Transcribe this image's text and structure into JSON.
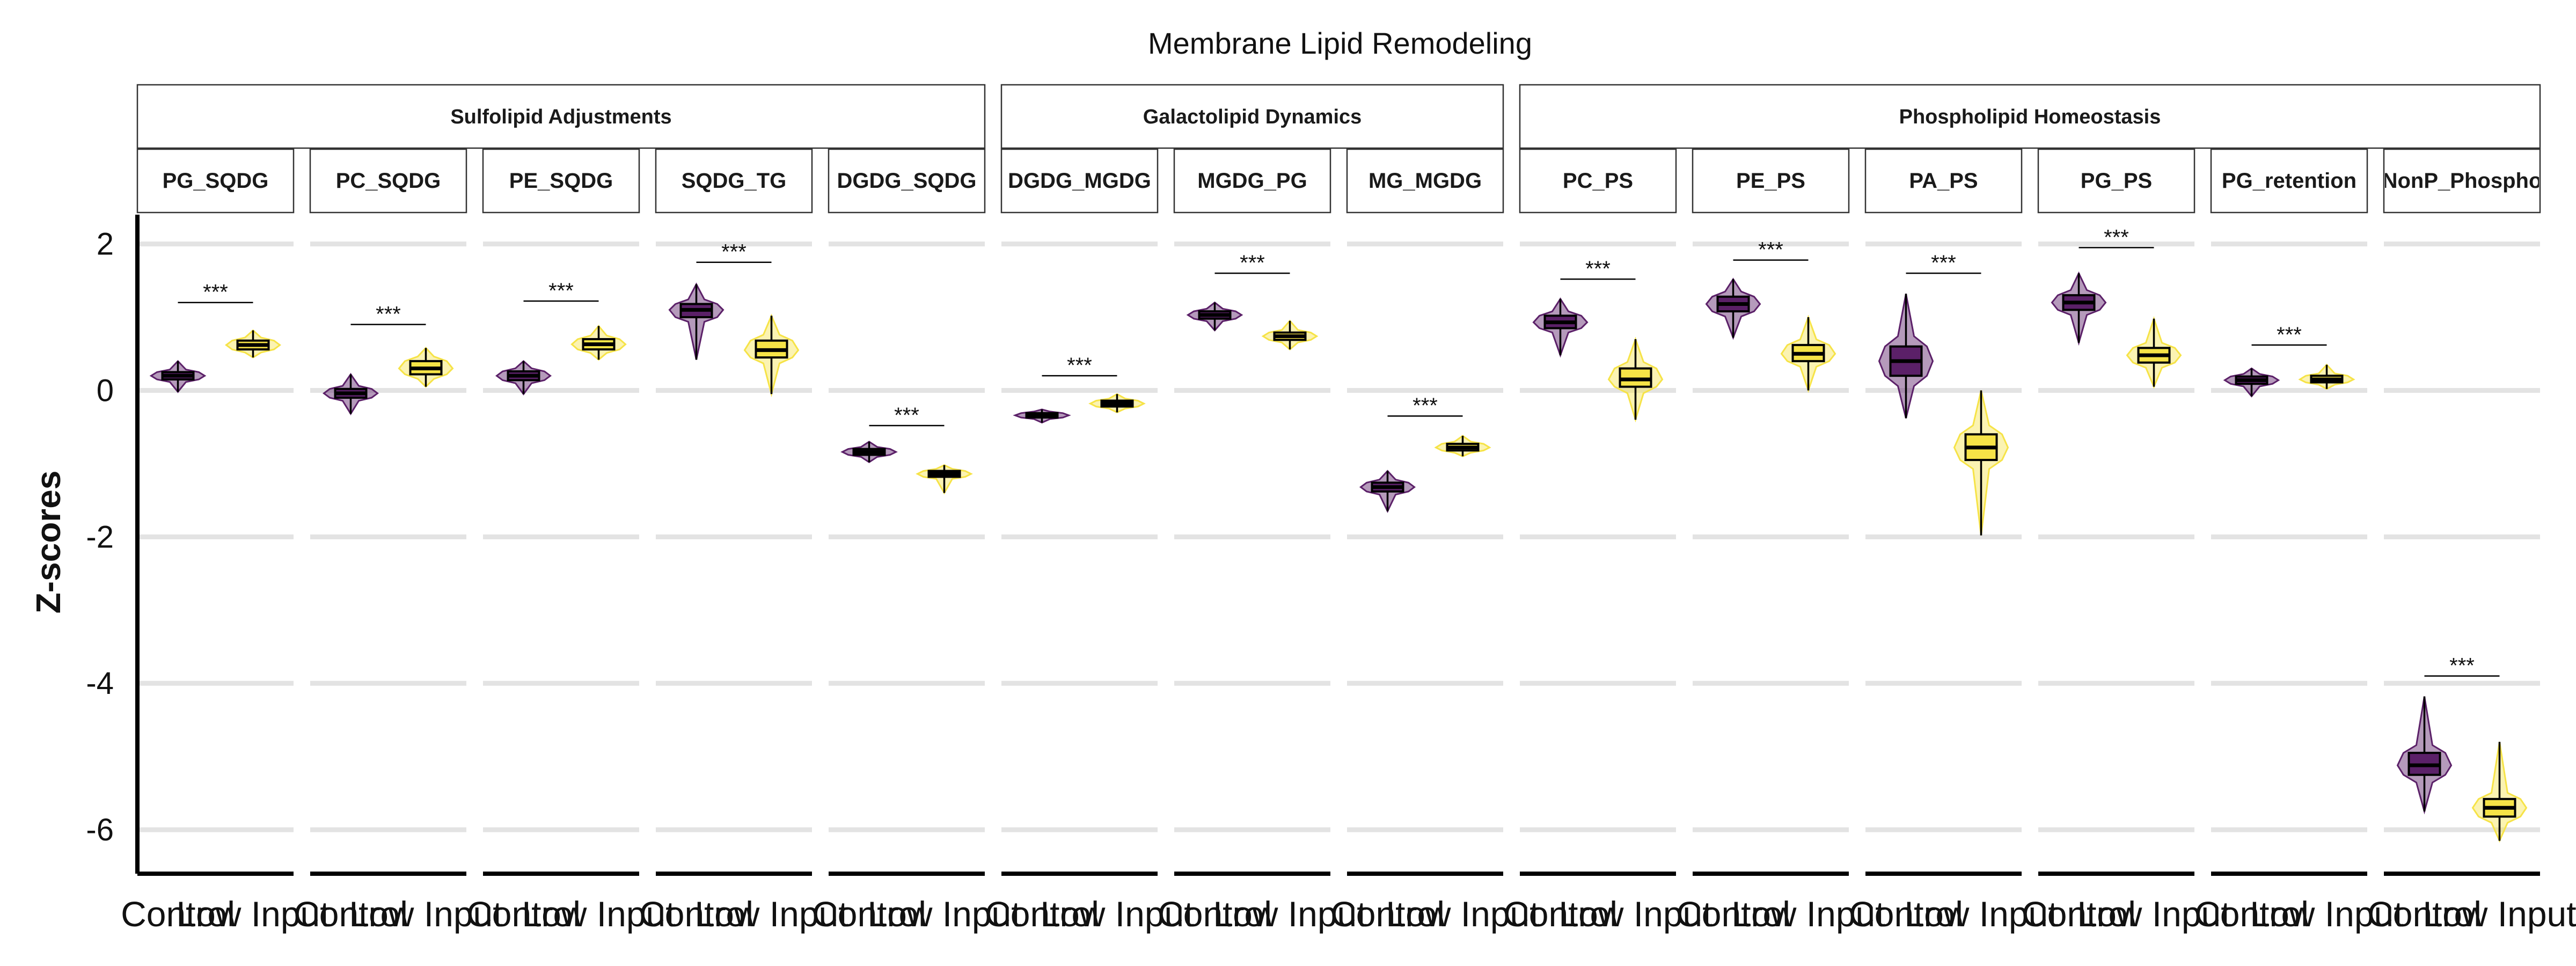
{
  "chart_data": {
    "type": "violin",
    "title": "Membrane Lipid Remodeling",
    "ylabel": "Z-scores",
    "xlabel": "",
    "ylim": [
      -6.6,
      2.4
    ],
    "yticks": [
      -6,
      -4,
      -2,
      0,
      2
    ],
    "grid": "horizontal",
    "legend": "none",
    "groups": [
      "Control",
      "Low Input"
    ],
    "colors": {
      "Control": "#5b2068",
      "Low Input": "#f6e347"
    },
    "significance_label": "***",
    "categories": [
      {
        "name": "Sulfolipid Adjustments",
        "panels": [
          "PG_SQDG",
          "PC_SQDG",
          "PE_SQDG",
          "SQDG_TG",
          "DGDG_SQDG"
        ]
      },
      {
        "name": "Galactolipid Dynamics",
        "panels": [
          "DGDG_MGDG",
          "MGDG_PG",
          "MG_MGDG"
        ]
      },
      {
        "name": "Phospholipid Homeostasis",
        "panels": [
          "PC_PS",
          "PE_PS",
          "PA_PS",
          "PG_PS",
          "PG_retention",
          "NonP_Phospho"
        ]
      }
    ],
    "panels": [
      {
        "name": "PG_SQDG",
        "sig_y": 1.2,
        "groups": [
          {
            "group": "Control",
            "min": -0.02,
            "q1": 0.15,
            "median": 0.2,
            "q3": 0.25,
            "max": 0.4
          },
          {
            "group": "Low Input",
            "min": 0.45,
            "q1": 0.56,
            "median": 0.62,
            "q3": 0.68,
            "max": 0.82
          }
        ]
      },
      {
        "name": "PC_SQDG",
        "sig_y": 0.9,
        "groups": [
          {
            "group": "Control",
            "min": -0.32,
            "q1": -0.1,
            "median": -0.04,
            "q3": 0.02,
            "max": 0.22
          },
          {
            "group": "Low Input",
            "min": 0.05,
            "q1": 0.22,
            "median": 0.3,
            "q3": 0.4,
            "max": 0.58
          }
        ]
      },
      {
        "name": "PE_SQDG",
        "sig_y": 1.22,
        "groups": [
          {
            "group": "Control",
            "min": -0.05,
            "q1": 0.14,
            "median": 0.2,
            "q3": 0.26,
            "max": 0.4
          },
          {
            "group": "Low Input",
            "min": 0.42,
            "q1": 0.56,
            "median": 0.63,
            "q3": 0.7,
            "max": 0.88
          }
        ]
      },
      {
        "name": "SQDG_TG",
        "sig_y": 1.75,
        "groups": [
          {
            "group": "Control",
            "min": 0.42,
            "q1": 1.0,
            "median": 1.1,
            "q3": 1.18,
            "max": 1.45
          },
          {
            "group": "Low Input",
            "min": -0.05,
            "q1": 0.45,
            "median": 0.55,
            "q3": 0.68,
            "max": 1.02
          }
        ]
      },
      {
        "name": "DGDG_SQDG",
        "sig_y": -0.48,
        "groups": [
          {
            "group": "Control",
            "min": -0.98,
            "q1": -0.88,
            "median": -0.84,
            "q3": -0.8,
            "max": -0.7
          },
          {
            "group": "Low Input",
            "min": -1.4,
            "q1": -1.18,
            "median": -1.14,
            "q3": -1.1,
            "max": -1.02
          }
        ]
      },
      {
        "name": "DGDG_MGDG",
        "sig_y": 0.2,
        "groups": [
          {
            "group": "Control",
            "min": -0.44,
            "q1": -0.37,
            "median": -0.34,
            "q3": -0.31,
            "max": -0.26
          },
          {
            "group": "Low Input",
            "min": -0.3,
            "q1": -0.22,
            "median": -0.18,
            "q3": -0.14,
            "max": -0.05
          }
        ]
      },
      {
        "name": "MGDG_PG",
        "sig_y": 1.6,
        "groups": [
          {
            "group": "Control",
            "min": 0.82,
            "q1": 0.98,
            "median": 1.03,
            "q3": 1.08,
            "max": 1.2
          },
          {
            "group": "Low Input",
            "min": 0.56,
            "q1": 0.69,
            "median": 0.74,
            "q3": 0.79,
            "max": 0.95
          }
        ]
      },
      {
        "name": "MG_MGDG",
        "sig_y": -0.35,
        "groups": [
          {
            "group": "Control",
            "min": -1.65,
            "q1": -1.38,
            "median": -1.32,
            "q3": -1.26,
            "max": -1.1
          },
          {
            "group": "Low Input",
            "min": -0.9,
            "q1": -0.82,
            "median": -0.78,
            "q3": -0.73,
            "max": -0.62
          }
        ]
      },
      {
        "name": "PC_PS",
        "sig_y": 1.52,
        "groups": [
          {
            "group": "Control",
            "min": 0.48,
            "q1": 0.85,
            "median": 0.93,
            "q3": 1.02,
            "max": 1.25
          },
          {
            "group": "Low Input",
            "min": -0.4,
            "q1": 0.05,
            "median": 0.15,
            "q3": 0.3,
            "max": 0.7
          }
        ]
      },
      {
        "name": "PE_PS",
        "sig_y": 1.78,
        "groups": [
          {
            "group": "Control",
            "min": 0.72,
            "q1": 1.08,
            "median": 1.18,
            "q3": 1.28,
            "max": 1.52
          },
          {
            "group": "Low Input",
            "min": 0.0,
            "q1": 0.4,
            "median": 0.5,
            "q3": 0.62,
            "max": 1.0
          }
        ]
      },
      {
        "name": "PA_PS",
        "sig_y": 1.6,
        "groups": [
          {
            "group": "Control",
            "min": -0.38,
            "q1": 0.2,
            "median": 0.4,
            "q3": 0.6,
            "max": 1.32
          },
          {
            "group": "Low Input",
            "min": -1.98,
            "q1": -0.95,
            "median": -0.78,
            "q3": -0.6,
            "max": 0.0
          }
        ]
      },
      {
        "name": "PG_PS",
        "sig_y": 1.95,
        "groups": [
          {
            "group": "Control",
            "min": 0.65,
            "q1": 1.1,
            "median": 1.2,
            "q3": 1.3,
            "max": 1.6
          },
          {
            "group": "Low Input",
            "min": 0.05,
            "q1": 0.38,
            "median": 0.48,
            "q3": 0.58,
            "max": 0.98
          }
        ]
      },
      {
        "name": "PG_retention",
        "sig_y": 0.62,
        "groups": [
          {
            "group": "Control",
            "min": -0.08,
            "q1": 0.09,
            "median": 0.14,
            "q3": 0.19,
            "max": 0.3
          },
          {
            "group": "Low Input",
            "min": 0.02,
            "q1": 0.11,
            "median": 0.15,
            "q3": 0.2,
            "max": 0.35
          }
        ]
      },
      {
        "name": "NonP_Phospho",
        "sig_y": -3.9,
        "groups": [
          {
            "group": "Control",
            "min": -5.75,
            "q1": -5.25,
            "median": -5.12,
            "q3": -4.95,
            "max": -4.18
          },
          {
            "group": "Low Input",
            "min": -6.15,
            "q1": -5.82,
            "median": -5.7,
            "q3": -5.58,
            "max": -4.8
          }
        ]
      }
    ]
  }
}
